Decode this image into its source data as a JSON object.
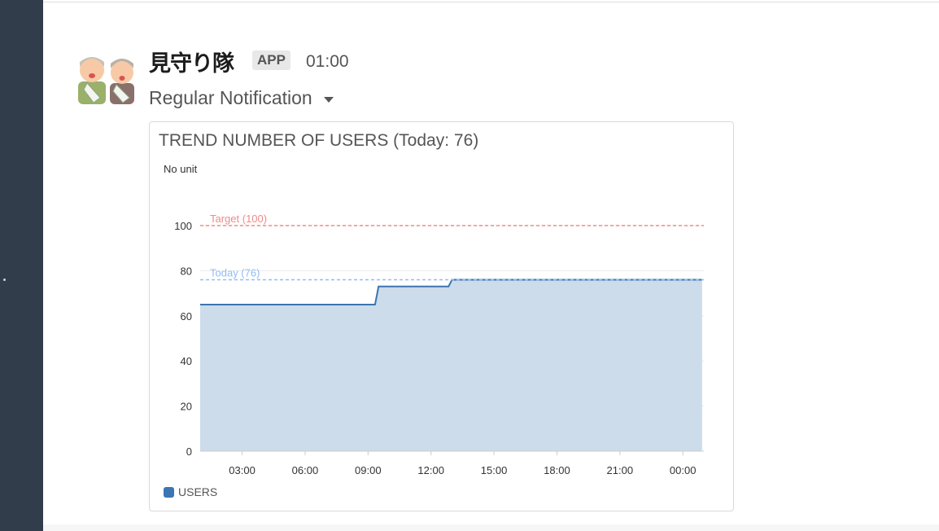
{
  "message": {
    "sender": "見守り隊",
    "badge": "APP",
    "time": "01:00",
    "subtitle": "Regular Notification"
  },
  "card": {
    "title": "TREND NUMBER OF USERS (Today: 76)",
    "unit_label": "No unit"
  },
  "chart_data": {
    "type": "area",
    "title": "TREND NUMBER OF USERS (Today: 76)",
    "ylabel": "No unit",
    "ylim": [
      0,
      100
    ],
    "yticks": [
      "0",
      "20",
      "40",
      "60",
      "80",
      "100"
    ],
    "xlim": [
      "01:00",
      "01:00"
    ],
    "xticks": [
      "03:00",
      "06:00",
      "09:00",
      "12:00",
      "15:00",
      "18:00",
      "21:00",
      "00:00"
    ],
    "grid": true,
    "legend": "bottom-left",
    "series": [
      {
        "name": "USERS",
        "color": "#3b75b2",
        "fill": "#cddcea",
        "points": [
          [
            "01:00",
            65
          ],
          [
            "09:20",
            65
          ],
          [
            "09:30",
            73
          ],
          [
            "12:50",
            73
          ],
          [
            "13:00",
            76
          ],
          [
            "00:55",
            76
          ]
        ]
      }
    ],
    "reference_lines": [
      {
        "label": "Target (100)",
        "value": 100,
        "color": "#f08a8a"
      },
      {
        "label": "Today (76)",
        "value": 76,
        "color": "#8fbdf5"
      }
    ]
  }
}
